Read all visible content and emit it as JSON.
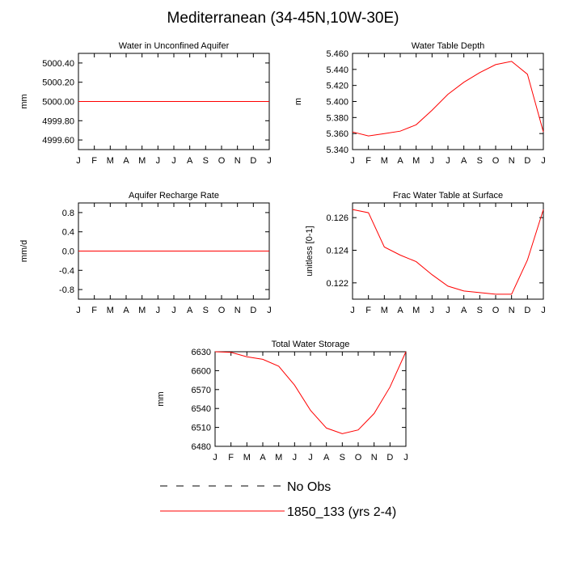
{
  "title": "Mediterranean (34-45N,10W-30E)",
  "colors": {
    "model": "#ff0000",
    "obs": "#000000",
    "frame": "#000000"
  },
  "chart_data": [
    {
      "type": "line",
      "title": "Water in Unconfined Aquifer",
      "ylabel": "mm",
      "xlabel": "",
      "categories": [
        "J",
        "F",
        "M",
        "A",
        "M",
        "J",
        "J",
        "A",
        "S",
        "O",
        "N",
        "D",
        "J"
      ],
      "ylim": [
        4999.5,
        5000.5
      ],
      "yticks": [
        4999.6,
        4999.8,
        5000.0,
        5000.2,
        5000.4
      ],
      "ytick_labels": [
        "4999.60",
        "4999.80",
        "5000.00",
        "5000.20",
        "5000.40"
      ],
      "series": [
        {
          "name": "1850_133 (yrs 2-4)",
          "values": [
            5000,
            5000,
            5000,
            5000,
            5000,
            5000,
            5000,
            5000,
            5000,
            5000,
            5000,
            5000,
            5000
          ]
        }
      ]
    },
    {
      "type": "line",
      "title": "Water Table Depth",
      "ylabel": "m",
      "xlabel": "",
      "categories": [
        "J",
        "F",
        "M",
        "A",
        "M",
        "J",
        "J",
        "A",
        "S",
        "O",
        "N",
        "D",
        "J"
      ],
      "ylim": [
        5.34,
        5.46
      ],
      "yticks": [
        5.34,
        5.36,
        5.38,
        5.4,
        5.42,
        5.44,
        5.46
      ],
      "ytick_labels": [
        "5.340",
        "5.360",
        "5.380",
        "5.400",
        "5.420",
        "5.440",
        "5.460"
      ],
      "series": [
        {
          "name": "1850_133 (yrs 2-4)",
          "values": [
            5.362,
            5.357,
            5.36,
            5.363,
            5.371,
            5.389,
            5.409,
            5.424,
            5.436,
            5.446,
            5.45,
            5.434,
            5.362
          ]
        }
      ]
    },
    {
      "type": "line",
      "title": "Aquifer Recharge Rate",
      "ylabel": "mm/d",
      "xlabel": "",
      "categories": [
        "J",
        "F",
        "M",
        "A",
        "M",
        "J",
        "J",
        "A",
        "S",
        "O",
        "N",
        "D",
        "J"
      ],
      "ylim": [
        -1.0,
        1.0
      ],
      "yticks": [
        -0.8,
        -0.4,
        0.0,
        0.4,
        0.8
      ],
      "ytick_labels": [
        "-0.8",
        "-0.4",
        "0.0",
        "0.4",
        "0.8"
      ],
      "series": [
        {
          "name": "1850_133 (yrs 2-4)",
          "values": [
            0,
            0,
            0,
            0,
            0,
            0,
            0,
            0,
            0,
            0,
            0,
            0,
            0
          ]
        }
      ]
    },
    {
      "type": "line",
      "title": "Frac Water Table at Surface",
      "ylabel": "unitless [0-1]",
      "xlabel": "",
      "categories": [
        "J",
        "F",
        "M",
        "A",
        "M",
        "J",
        "J",
        "A",
        "S",
        "O",
        "N",
        "D",
        "J"
      ],
      "ylim": [
        0.121,
        0.1269
      ],
      "yticks": [
        0.122,
        0.124,
        0.126
      ],
      "ytick_labels": [
        "0.122",
        "0.124",
        "0.126"
      ],
      "series": [
        {
          "name": "1850_133 (yrs 2-4)",
          "values": [
            0.1265,
            0.1263,
            0.1242,
            0.1237,
            0.1233,
            0.1225,
            0.1218,
            0.1215,
            0.1214,
            0.1213,
            0.1213,
            0.1234,
            0.1265
          ]
        }
      ]
    },
    {
      "type": "line",
      "title": "Total Water Storage",
      "ylabel": "mm",
      "xlabel": "",
      "categories": [
        "J",
        "F",
        "M",
        "A",
        "M",
        "J",
        "J",
        "A",
        "S",
        "O",
        "N",
        "D",
        "J"
      ],
      "ylim": [
        6480,
        6630
      ],
      "yticks": [
        6480,
        6510,
        6540,
        6570,
        6600,
        6630
      ],
      "ytick_labels": [
        "6480",
        "6510",
        "6540",
        "6570",
        "6600",
        "6630"
      ],
      "series": [
        {
          "name": "1850_133 (yrs 2-4)",
          "values": [
            6630,
            6629,
            6622,
            6618,
            6607,
            6577,
            6537,
            6509,
            6500,
            6506,
            6532,
            6574,
            6630
          ]
        }
      ]
    }
  ],
  "legend": [
    {
      "label": "No Obs",
      "style": "dashed",
      "color": "#000000"
    },
    {
      "label": "1850_133 (yrs 2-4)",
      "style": "solid",
      "color": "#ff0000"
    }
  ]
}
